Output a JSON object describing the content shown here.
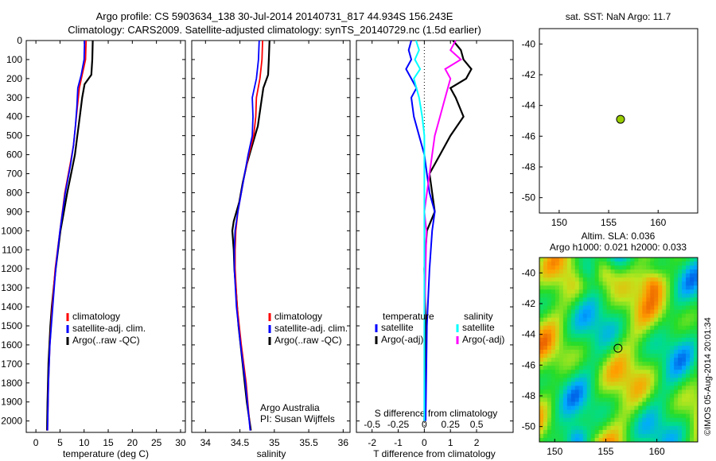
{
  "figure": {
    "title_line1": "Argo profile: CS 5903634_138 30-Jul-2014 20140731_817 44.934S 156.243E",
    "title_line2": "Climatology: CARS2009. Satellite-adjusted climatology: synTS_20140729.nc (1.5d earlier)",
    "side_text": "©IMOS 05-Aug-2014 20:01:34",
    "attribution_line1": "Argo Australia",
    "attribution_line2": "PI: Susan Wijffels"
  },
  "colors": {
    "climatology": "#ff0000",
    "satellite": "#0000ff",
    "argo": "#000000",
    "salinity_satellite": "#00ffff",
    "salinity_argo": "#ff00ff",
    "float_marker": "#99cc00"
  },
  "legends": {
    "temperature": [
      "climatology",
      "satellite-adj. clim.",
      "Argo(..raw -QC)"
    ],
    "salinity": [
      "climatology",
      "satellite-adj. clim.",
      "Argo(..raw -QC)"
    ],
    "diff_left_title": "temperature",
    "diff_left": [
      "satellite",
      "Argo(-adj)"
    ],
    "diff_right_title": "salinity",
    "diff_right": [
      "satellite",
      "Argo(-adj)"
    ]
  },
  "chart_data": [
    {
      "type": "line",
      "name": "temperature",
      "xlabel": "temperature (deg C)",
      "ylabel": "",
      "xlim": [
        -2,
        31
      ],
      "ylim": [
        2060,
        0
      ],
      "xticks": [
        "0",
        "5",
        "10",
        "15",
        "20",
        "25",
        "30"
      ],
      "yticks": [
        "0",
        "100",
        "200",
        "300",
        "400",
        "500",
        "600",
        "700",
        "800",
        "900",
        "1000",
        "1100",
        "1200",
        "1300",
        "1400",
        "1500",
        "1600",
        "1700",
        "1800",
        "1900",
        "2000"
      ],
      "series": [
        {
          "name": "climatology",
          "depth": [
            0,
            100,
            180,
            250,
            350,
            450,
            550,
            650,
            800,
            1000,
            1200,
            1400,
            1600,
            1800,
            2050
          ],
          "values": [
            10.4,
            10.3,
            9.6,
            9.0,
            8.6,
            8.2,
            7.8,
            7.1,
            6.0,
            5.0,
            4.0,
            3.4,
            2.9,
            2.6,
            2.4
          ]
        },
        {
          "name": "satellite-adj. clim.",
          "depth": [
            0,
            100,
            180,
            250,
            350,
            450,
            550,
            650,
            800,
            1000,
            1200,
            1400,
            1600,
            1800,
            2050
          ],
          "values": [
            10.1,
            10.0,
            9.4,
            8.7,
            8.5,
            8.2,
            7.8,
            7.2,
            6.1,
            5.0,
            4.1,
            3.5,
            2.9,
            2.6,
            2.4
          ]
        },
        {
          "name": "Argo(..raw -QC)",
          "depth": [
            0,
            100,
            180,
            230,
            300,
            400,
            500,
            600,
            700,
            800,
            900,
            1000,
            1100,
            1200,
            1300,
            1400,
            1500,
            1600,
            1700,
            1800,
            1900,
            2050
          ],
          "values": [
            11.8,
            11.7,
            11.5,
            10.1,
            9.6,
            9.1,
            8.6,
            8.1,
            7.3,
            6.5,
            5.8,
            5.1,
            4.6,
            4.1,
            3.7,
            3.3,
            3.0,
            2.8,
            2.6,
            2.5,
            2.4,
            2.3
          ]
        }
      ]
    },
    {
      "type": "line",
      "name": "salinity",
      "xlabel": "salinity",
      "ylabel": "",
      "xlim": [
        33.8,
        36.1
      ],
      "ylim": [
        2060,
        0
      ],
      "xticks": [
        "34",
        "34.5",
        "35",
        "35.5",
        "36"
      ],
      "series": [
        {
          "name": "climatology",
          "depth": [
            0,
            100,
            200,
            300,
            400,
            500,
            600,
            700,
            800,
            900,
            1000,
            1100,
            1200,
            1400,
            1600,
            1800,
            2050
          ],
          "values": [
            34.83,
            34.82,
            34.79,
            34.74,
            34.73,
            34.7,
            34.63,
            34.57,
            34.52,
            34.47,
            34.44,
            34.43,
            34.43,
            34.46,
            34.52,
            34.59,
            34.65
          ]
        },
        {
          "name": "satellite-adj. clim.",
          "depth": [
            0,
            100,
            200,
            300,
            400,
            500,
            600,
            700,
            800,
            900,
            1000,
            1100,
            1200,
            1400,
            1600,
            1800,
            2050
          ],
          "values": [
            34.78,
            34.77,
            34.74,
            34.68,
            34.69,
            34.68,
            34.62,
            34.57,
            34.52,
            34.47,
            34.43,
            34.42,
            34.42,
            34.45,
            34.51,
            34.58,
            34.65
          ]
        },
        {
          "name": "Argo(..raw -QC)",
          "depth": [
            0,
            100,
            180,
            250,
            350,
            450,
            550,
            650,
            750,
            850,
            950,
            1000,
            1100,
            1200,
            1300,
            1400,
            1500,
            1600,
            1700,
            1800,
            1900,
            2050
          ],
          "values": [
            34.93,
            34.92,
            34.91,
            34.84,
            34.8,
            34.76,
            34.68,
            34.6,
            34.54,
            34.49,
            34.41,
            34.39,
            34.41,
            34.42,
            34.44,
            34.46,
            34.48,
            34.51,
            34.54,
            34.57,
            34.6,
            34.66
          ]
        }
      ]
    },
    {
      "type": "line",
      "name": "difference",
      "xlabel": "T difference from climatology",
      "xlabel_top": "S difference from climatology",
      "xlim": [
        -2.6,
        3.4
      ],
      "ylim": [
        2060,
        0
      ],
      "xticks": [
        "-2",
        "-1",
        "0",
        "1",
        "2"
      ],
      "xticks_salinity": [
        "-0.5",
        "-0.25",
        "0",
        "0.25",
        "0.5"
      ],
      "series": [
        {
          "name": "temperature satellite",
          "depth": [
            0,
            50,
            100,
            150,
            200,
            250,
            300,
            400,
            500,
            600,
            700,
            800,
            900,
            1000,
            1200,
            1500,
            2000
          ],
          "values": [
            -0.5,
            -0.6,
            -0.5,
            -0.7,
            -0.5,
            -0.3,
            -0.5,
            -0.4,
            -0.2,
            0.0,
            0.1,
            0.2,
            0.4,
            0.3,
            0.2,
            0.1,
            0.05
          ]
        },
        {
          "name": "temperature Argo(-adj)",
          "depth": [
            0,
            50,
            100,
            150,
            200,
            250,
            300,
            400,
            500,
            600,
            700,
            800,
            900,
            1000,
            1200,
            1500,
            2000
          ],
          "values": [
            1.1,
            1.4,
            1.5,
            1.8,
            1.6,
            1.0,
            1.2,
            1.5,
            1.0,
            0.6,
            0.2,
            0.3,
            0.4,
            0.1,
            0.0,
            0.05,
            0.0
          ]
        },
        {
          "name": "salinity satellite",
          "depth": [
            0,
            50,
            100,
            150,
            200,
            300,
            400,
            500,
            700,
            1000,
            1500,
            2000
          ],
          "values": [
            -0.08,
            -0.05,
            -0.09,
            -0.04,
            -0.1,
            -0.05,
            -0.02,
            0.0,
            0.0,
            0.0,
            0.0,
            0.0
          ]
        },
        {
          "name": "salinity Argo(-adj)",
          "depth": [
            0,
            50,
            100,
            150,
            200,
            300,
            400,
            500,
            700,
            900,
            1000,
            1500,
            2000
          ],
          "values": [
            0.3,
            0.25,
            0.35,
            0.2,
            0.25,
            0.2,
            0.15,
            0.1,
            0.05,
            0.0,
            0.02,
            0.0,
            0.0
          ]
        }
      ]
    },
    {
      "type": "scatter",
      "name": "sst_map",
      "title": "sat. SST: NaN Argo: 11.7",
      "xlim": [
        148,
        164
      ],
      "ylim": [
        -51,
        -39
      ],
      "xticks": [
        "150",
        "155",
        "160"
      ],
      "yticks": [
        "-40",
        "-42",
        "-44",
        "-46",
        "-48",
        "-50"
      ],
      "points": [
        {
          "x": 156.2,
          "y": -44.9
        }
      ]
    },
    {
      "type": "heatmap",
      "name": "sla_map",
      "title_line1": "Altim. SLA: 0.036",
      "title_line2": "Argo h1000: 0.021 h2000: 0.033",
      "xlim": [
        148.5,
        164
      ],
      "ylim": [
        -51,
        -39
      ],
      "xticks": [
        "150",
        "155",
        "160"
      ],
      "yticks": [
        "-40",
        "-42",
        "-44",
        "-46",
        "-48",
        "-50"
      ],
      "points": [
        {
          "x": 156.2,
          "y": -44.9
        }
      ]
    }
  ]
}
